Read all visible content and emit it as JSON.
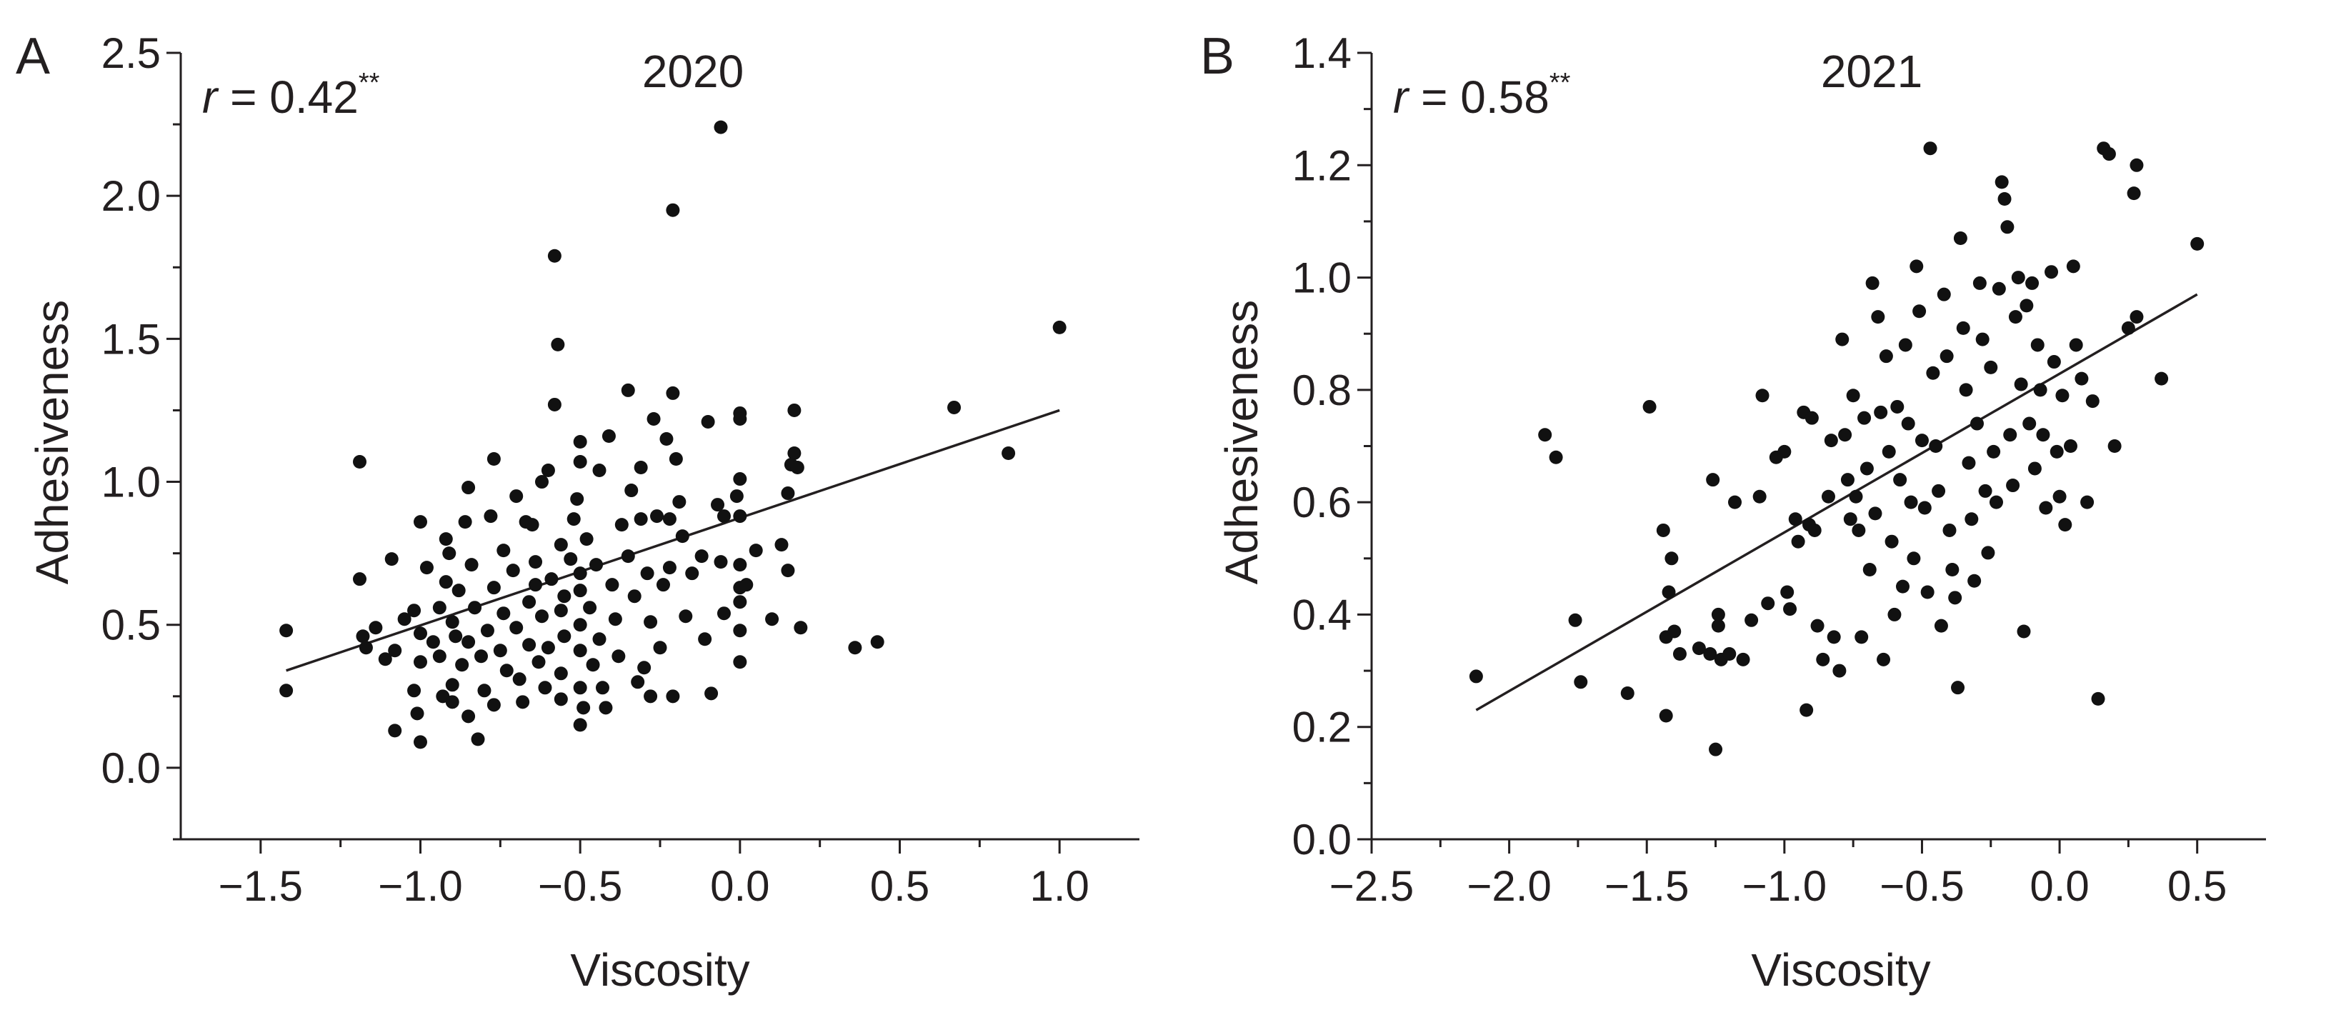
{
  "chart_data": [
    {
      "type": "scatter",
      "panel_label": "A",
      "title": "2020",
      "xlabel": "Viscosity",
      "ylabel": "Adhesiveness",
      "stat": {
        "prefix": "r",
        "text": " = 0.42",
        "superscript": "**"
      },
      "xlim": [
        -1.75,
        1.25
      ],
      "ylim": [
        -0.25,
        2.5
      ],
      "xticks": [
        -1.5,
        -1.0,
        -0.5,
        0.0,
        0.5,
        1.0
      ],
      "xtick_labels": [
        "−1.5",
        "−1.0",
        "−0.5",
        "0.0",
        "0.5",
        "1.0"
      ],
      "yticks": [
        0.0,
        0.5,
        1.0,
        1.5,
        2.0,
        2.5
      ],
      "ytick_labels": [
        "0.0",
        "0.5",
        "1.0",
        "1.5",
        "2.0",
        "2.5"
      ],
      "fit_line": {
        "x": [
          -1.42,
          1.0
        ],
        "y": [
          0.34,
          1.25
        ]
      },
      "points": [
        [
          -1.42,
          0.48
        ],
        [
          -1.42,
          0.27
        ],
        [
          -1.19,
          1.07
        ],
        [
          -1.19,
          0.66
        ],
        [
          -1.18,
          0.46
        ],
        [
          -1.17,
          0.42
        ],
        [
          -1.14,
          0.49
        ],
        [
          -1.11,
          0.38
        ],
        [
          -1.09,
          0.73
        ],
        [
          -1.08,
          0.41
        ],
        [
          -1.08,
          0.13
        ],
        [
          -1.05,
          0.52
        ],
        [
          -1.02,
          0.55
        ],
        [
          -1.02,
          0.27
        ],
        [
          -1.01,
          0.19
        ],
        [
          -1.0,
          0.86
        ],
        [
          -1.0,
          0.47
        ],
        [
          -1.0,
          0.37
        ],
        [
          -1.0,
          0.09
        ],
        [
          -0.98,
          0.7
        ],
        [
          -0.96,
          0.44
        ],
        [
          -0.94,
          0.56
        ],
        [
          -0.94,
          0.39
        ],
        [
          -0.93,
          0.25
        ],
        [
          -0.92,
          0.8
        ],
        [
          -0.92,
          0.65
        ],
        [
          -0.91,
          0.75
        ],
        [
          -0.9,
          0.51
        ],
        [
          -0.9,
          0.29
        ],
        [
          -0.9,
          0.23
        ],
        [
          -0.89,
          0.46
        ],
        [
          -0.88,
          0.62
        ],
        [
          -0.87,
          0.36
        ],
        [
          -0.86,
          0.86
        ],
        [
          -0.85,
          0.98
        ],
        [
          -0.85,
          0.44
        ],
        [
          -0.85,
          0.18
        ],
        [
          -0.84,
          0.71
        ],
        [
          -0.83,
          0.56
        ],
        [
          -0.82,
          0.1
        ],
        [
          -0.81,
          0.39
        ],
        [
          -0.8,
          0.27
        ],
        [
          -0.79,
          0.48
        ],
        [
          -0.78,
          0.88
        ],
        [
          -0.77,
          1.08
        ],
        [
          -0.77,
          0.63
        ],
        [
          -0.77,
          0.22
        ],
        [
          -0.75,
          0.41
        ],
        [
          -0.74,
          0.76
        ],
        [
          -0.74,
          0.54
        ],
        [
          -0.73,
          0.34
        ],
        [
          -0.71,
          0.69
        ],
        [
          -0.7,
          0.49
        ],
        [
          -0.7,
          0.95
        ],
        [
          -0.69,
          0.31
        ],
        [
          -0.68,
          0.23
        ],
        [
          -0.67,
          0.86
        ],
        [
          -0.66,
          0.58
        ],
        [
          -0.66,
          0.43
        ],
        [
          -0.65,
          0.85
        ],
        [
          -0.64,
          0.72
        ],
        [
          -0.64,
          0.64
        ],
        [
          -0.63,
          0.37
        ],
        [
          -0.62,
          1.0
        ],
        [
          -0.62,
          0.53
        ],
        [
          -0.61,
          0.28
        ],
        [
          -0.6,
          1.04
        ],
        [
          -0.6,
          0.42
        ],
        [
          -0.59,
          0.66
        ],
        [
          -0.58,
          1.79
        ],
        [
          -0.58,
          1.27
        ],
        [
          -0.57,
          1.48
        ],
        [
          -0.56,
          0.78
        ],
        [
          -0.56,
          0.55
        ],
        [
          -0.56,
          0.33
        ],
        [
          -0.56,
          0.24
        ],
        [
          -0.55,
          0.46
        ],
        [
          -0.55,
          0.6
        ],
        [
          -0.53,
          0.73
        ],
        [
          -0.52,
          0.87
        ],
        [
          -0.51,
          0.94
        ],
        [
          -0.5,
          1.14
        ],
        [
          -0.5,
          1.07
        ],
        [
          -0.5,
          0.68
        ],
        [
          -0.5,
          0.62
        ],
        [
          -0.5,
          0.5
        ],
        [
          -0.5,
          0.41
        ],
        [
          -0.5,
          0.28
        ],
        [
          -0.5,
          0.15
        ],
        [
          -0.49,
          0.21
        ],
        [
          -0.48,
          0.8
        ],
        [
          -0.47,
          0.56
        ],
        [
          -0.46,
          0.36
        ],
        [
          -0.45,
          0.71
        ],
        [
          -0.44,
          1.04
        ],
        [
          -0.44,
          0.45
        ],
        [
          -0.43,
          0.28
        ],
        [
          -0.42,
          0.21
        ],
        [
          -0.41,
          1.16
        ],
        [
          -0.4,
          0.64
        ],
        [
          -0.39,
          0.52
        ],
        [
          -0.38,
          0.39
        ],
        [
          -0.37,
          0.85
        ],
        [
          -0.35,
          1.32
        ],
        [
          -0.35,
          0.74
        ],
        [
          -0.34,
          0.97
        ],
        [
          -0.33,
          0.6
        ],
        [
          -0.32,
          0.3
        ],
        [
          -0.31,
          1.05
        ],
        [
          -0.31,
          0.87
        ],
        [
          -0.3,
          0.35
        ],
        [
          -0.29,
          0.68
        ],
        [
          -0.28,
          0.51
        ],
        [
          -0.28,
          0.25
        ],
        [
          -0.27,
          1.22
        ],
        [
          -0.26,
          0.88
        ],
        [
          -0.25,
          0.42
        ],
        [
          -0.24,
          0.64
        ],
        [
          -0.23,
          1.15
        ],
        [
          -0.22,
          0.87
        ],
        [
          -0.22,
          0.7
        ],
        [
          -0.21,
          1.95
        ],
        [
          -0.21,
          1.31
        ],
        [
          -0.21,
          0.25
        ],
        [
          -0.2,
          1.08
        ],
        [
          -0.19,
          0.93
        ],
        [
          -0.18,
          0.81
        ],
        [
          -0.17,
          0.53
        ],
        [
          -0.15,
          0.68
        ],
        [
          -0.12,
          0.74
        ],
        [
          -0.11,
          0.45
        ],
        [
          -0.1,
          1.21
        ],
        [
          -0.09,
          0.26
        ],
        [
          -0.07,
          0.92
        ],
        [
          -0.06,
          2.24
        ],
        [
          -0.06,
          0.72
        ],
        [
          -0.05,
          0.88
        ],
        [
          -0.05,
          0.54
        ],
        [
          -0.01,
          0.95
        ],
        [
          0.0,
          1.24
        ],
        [
          0.0,
          1.22
        ],
        [
          0.0,
          1.01
        ],
        [
          0.0,
          0.88
        ],
        [
          0.0,
          0.71
        ],
        [
          0.0,
          0.63
        ],
        [
          0.0,
          0.58
        ],
        [
          0.0,
          0.48
        ],
        [
          0.0,
          0.37
        ],
        [
          0.02,
          0.64
        ],
        [
          0.05,
          0.76
        ],
        [
          0.1,
          0.52
        ],
        [
          0.13,
          0.78
        ],
        [
          0.15,
          0.69
        ],
        [
          0.15,
          0.96
        ],
        [
          0.16,
          1.06
        ],
        [
          0.17,
          1.25
        ],
        [
          0.17,
          1.1
        ],
        [
          0.18,
          1.05
        ],
        [
          0.19,
          0.49
        ],
        [
          0.36,
          0.42
        ],
        [
          0.43,
          0.44
        ],
        [
          0.67,
          1.26
        ],
        [
          0.84,
          1.1
        ],
        [
          1.0,
          1.54
        ]
      ]
    },
    {
      "type": "scatter",
      "panel_label": "B",
      "title": "2021",
      "xlabel": "Viscosity",
      "ylabel": "Adhesiveness",
      "stat": {
        "prefix": "r",
        "text": " = 0.58",
        "superscript": "**"
      },
      "xlim": [
        -2.5,
        0.75
      ],
      "ylim": [
        0.0,
        1.4
      ],
      "xticks": [
        -2.5,
        -2.0,
        -1.5,
        -1.0,
        -0.5,
        0.0,
        0.5
      ],
      "xtick_labels": [
        "−2.5",
        "−2.0",
        "−1.5",
        "−1.0",
        "−0.5",
        "0.0",
        "0.5"
      ],
      "yticks": [
        0.0,
        0.2,
        0.4,
        0.6,
        0.8,
        1.0,
        1.2,
        1.4
      ],
      "ytick_labels": [
        "0.0",
        "0.2",
        "0.4",
        "0.6",
        "0.8",
        "1.0",
        "1.2",
        "1.4"
      ],
      "fit_line": {
        "x": [
          -2.12,
          0.5
        ],
        "y": [
          0.23,
          0.97
        ]
      },
      "points": [
        [
          -2.12,
          0.29
        ],
        [
          -1.87,
          0.72
        ],
        [
          -1.83,
          0.68
        ],
        [
          -1.76,
          0.39
        ],
        [
          -1.74,
          0.28
        ],
        [
          -1.57,
          0.26
        ],
        [
          -1.49,
          0.77
        ],
        [
          -1.44,
          0.55
        ],
        [
          -1.43,
          0.36
        ],
        [
          -1.43,
          0.22
        ],
        [
          -1.42,
          0.44
        ],
        [
          -1.41,
          0.5
        ],
        [
          -1.4,
          0.37
        ],
        [
          -1.38,
          0.33
        ],
        [
          -1.31,
          0.34
        ],
        [
          -1.27,
          0.33
        ],
        [
          -1.26,
          0.64
        ],
        [
          -1.25,
          0.16
        ],
        [
          -1.24,
          0.4
        ],
        [
          -1.24,
          0.38
        ],
        [
          -1.23,
          0.32
        ],
        [
          -1.2,
          0.33
        ],
        [
          -1.18,
          0.6
        ],
        [
          -1.15,
          0.32
        ],
        [
          -1.12,
          0.39
        ],
        [
          -1.09,
          0.61
        ],
        [
          -1.08,
          0.79
        ],
        [
          -1.06,
          0.42
        ],
        [
          -1.03,
          0.68
        ],
        [
          -1.0,
          0.69
        ],
        [
          -0.99,
          0.44
        ],
        [
          -0.98,
          0.41
        ],
        [
          -0.96,
          0.57
        ],
        [
          -0.95,
          0.53
        ],
        [
          -0.93,
          0.76
        ],
        [
          -0.92,
          0.23
        ],
        [
          -0.91,
          0.56
        ],
        [
          -0.9,
          0.75
        ],
        [
          -0.89,
          0.55
        ],
        [
          -0.88,
          0.38
        ],
        [
          -0.86,
          0.32
        ],
        [
          -0.84,
          0.61
        ],
        [
          -0.83,
          0.71
        ],
        [
          -0.82,
          0.36
        ],
        [
          -0.8,
          0.3
        ],
        [
          -0.79,
          0.89
        ],
        [
          -0.78,
          0.72
        ],
        [
          -0.77,
          0.64
        ],
        [
          -0.76,
          0.57
        ],
        [
          -0.75,
          0.79
        ],
        [
          -0.74,
          0.61
        ],
        [
          -0.73,
          0.55
        ],
        [
          -0.72,
          0.36
        ],
        [
          -0.71,
          0.75
        ],
        [
          -0.7,
          0.66
        ],
        [
          -0.69,
          0.48
        ],
        [
          -0.68,
          0.99
        ],
        [
          -0.67,
          0.58
        ],
        [
          -0.66,
          0.93
        ],
        [
          -0.65,
          0.76
        ],
        [
          -0.64,
          0.32
        ],
        [
          -0.63,
          0.86
        ],
        [
          -0.62,
          0.69
        ],
        [
          -0.61,
          0.53
        ],
        [
          -0.6,
          0.4
        ],
        [
          -0.59,
          0.77
        ],
        [
          -0.58,
          0.64
        ],
        [
          -0.57,
          0.45
        ],
        [
          -0.56,
          0.88
        ],
        [
          -0.55,
          0.74
        ],
        [
          -0.54,
          0.6
        ],
        [
          -0.53,
          0.5
        ],
        [
          -0.52,
          1.02
        ],
        [
          -0.51,
          0.94
        ],
        [
          -0.5,
          0.71
        ],
        [
          -0.49,
          0.59
        ],
        [
          -0.48,
          0.44
        ],
        [
          -0.47,
          1.23
        ],
        [
          -0.46,
          0.83
        ],
        [
          -0.45,
          0.7
        ],
        [
          -0.44,
          0.62
        ],
        [
          -0.43,
          0.38
        ],
        [
          -0.42,
          0.97
        ],
        [
          -0.41,
          0.86
        ],
        [
          -0.4,
          0.55
        ],
        [
          -0.39,
          0.48
        ],
        [
          -0.38,
          0.43
        ],
        [
          -0.37,
          0.27
        ],
        [
          -0.36,
          1.07
        ],
        [
          -0.35,
          0.91
        ],
        [
          -0.34,
          0.8
        ],
        [
          -0.33,
          0.67
        ],
        [
          -0.32,
          0.57
        ],
        [
          -0.31,
          0.46
        ],
        [
          -0.3,
          0.74
        ],
        [
          -0.29,
          0.99
        ],
        [
          -0.28,
          0.89
        ],
        [
          -0.27,
          0.62
        ],
        [
          -0.26,
          0.51
        ],
        [
          -0.25,
          0.84
        ],
        [
          -0.24,
          0.69
        ],
        [
          -0.23,
          0.6
        ],
        [
          -0.22,
          0.98
        ],
        [
          -0.21,
          1.17
        ],
        [
          -0.2,
          1.14
        ],
        [
          -0.19,
          1.09
        ],
        [
          -0.18,
          0.72
        ],
        [
          -0.17,
          0.63
        ],
        [
          -0.16,
          0.93
        ],
        [
          -0.15,
          1.0
        ],
        [
          -0.14,
          0.81
        ],
        [
          -0.13,
          0.37
        ],
        [
          -0.12,
          0.95
        ],
        [
          -0.11,
          0.74
        ],
        [
          -0.1,
          0.99
        ],
        [
          -0.09,
          0.66
        ],
        [
          -0.08,
          0.88
        ],
        [
          -0.07,
          0.8
        ],
        [
          -0.06,
          0.72
        ],
        [
          -0.05,
          0.59
        ],
        [
          -0.03,
          1.01
        ],
        [
          -0.02,
          0.85
        ],
        [
          -0.01,
          0.69
        ],
        [
          0.0,
          0.61
        ],
        [
          0.01,
          0.79
        ],
        [
          0.02,
          0.56
        ],
        [
          0.04,
          0.7
        ],
        [
          0.05,
          1.02
        ],
        [
          0.06,
          0.88
        ],
        [
          0.08,
          0.82
        ],
        [
          0.1,
          0.6
        ],
        [
          0.12,
          0.78
        ],
        [
          0.14,
          0.25
        ],
        [
          0.16,
          1.23
        ],
        [
          0.18,
          1.22
        ],
        [
          0.2,
          0.7
        ],
        [
          0.25,
          0.91
        ],
        [
          0.27,
          1.15
        ],
        [
          0.28,
          1.2
        ],
        [
          0.28,
          0.93
        ],
        [
          0.37,
          0.82
        ],
        [
          0.5,
          1.06
        ]
      ]
    }
  ]
}
